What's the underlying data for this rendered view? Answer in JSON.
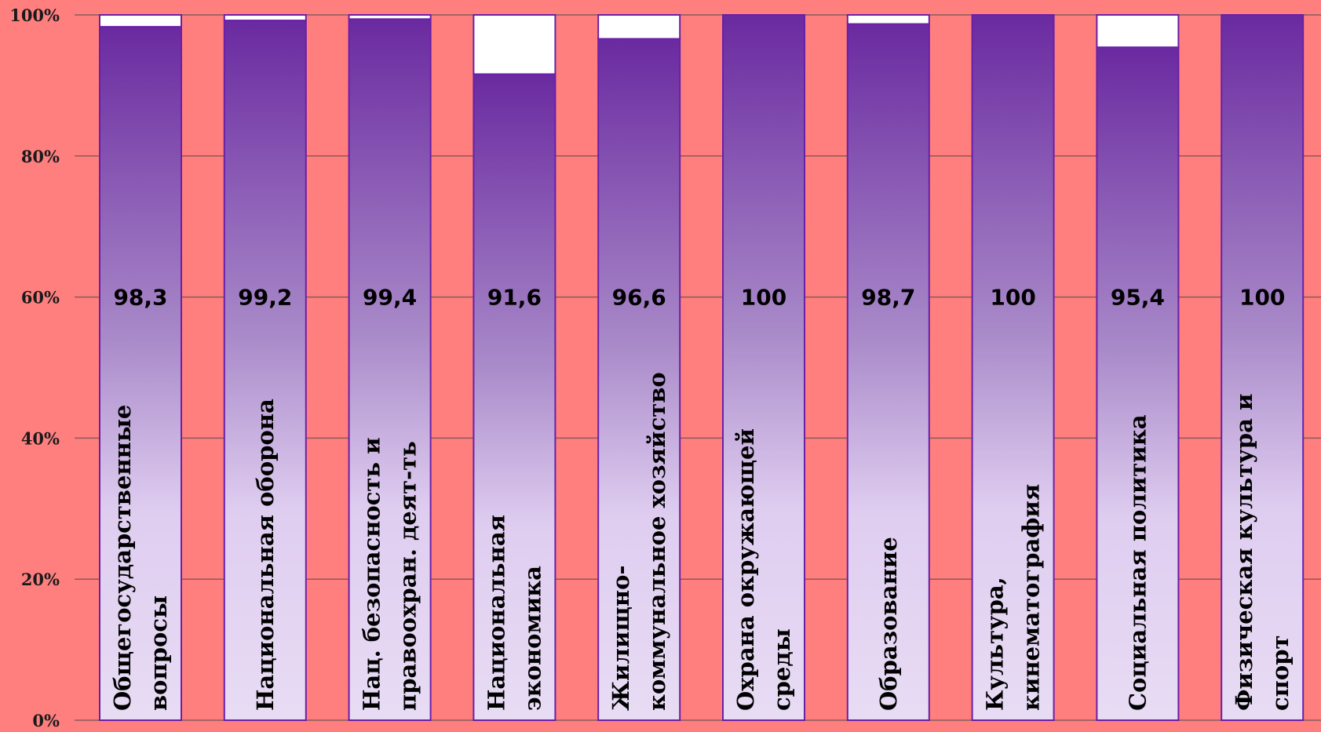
{
  "chart_data": {
    "type": "bar",
    "stacked_percent": true,
    "categories": [
      [
        "Общегосударственные",
        "вопросы"
      ],
      [
        "Национальная оборона"
      ],
      [
        "Нац. безопасность и",
        "правоохран. деят-ть"
      ],
      [
        "Национальная",
        "экономика"
      ],
      [
        "Жилищно-",
        "коммунальное хозяйство"
      ],
      [
        "Охрана окружающей",
        "среды"
      ],
      [
        "Образование"
      ],
      [
        "Культура,",
        "кинематография"
      ],
      [
        "Социальная политика"
      ],
      [
        "Физическая культура и",
        "спорт"
      ]
    ],
    "values": [
      98.3,
      99.2,
      99.4,
      91.6,
      96.6,
      100,
      98.7,
      100,
      95.4,
      100
    ],
    "value_labels": [
      "98,3",
      "99,2",
      "99,4",
      "91,6",
      "96,6",
      "100",
      "98,7",
      "100",
      "95,4",
      "100"
    ],
    "y_ticks": [
      "0%",
      "20%",
      "40%",
      "60%",
      "80%",
      "100%"
    ],
    "ylim": [
      0,
      100
    ],
    "grid": true,
    "colors": {
      "background": "#ff7f7f",
      "bar_top": "#6a2aa0",
      "bar_bottom": "#e6d8f3",
      "bar_border": "#6a1fa8",
      "remainder": "#ffffff",
      "grid": "#8a5a5a"
    }
  }
}
